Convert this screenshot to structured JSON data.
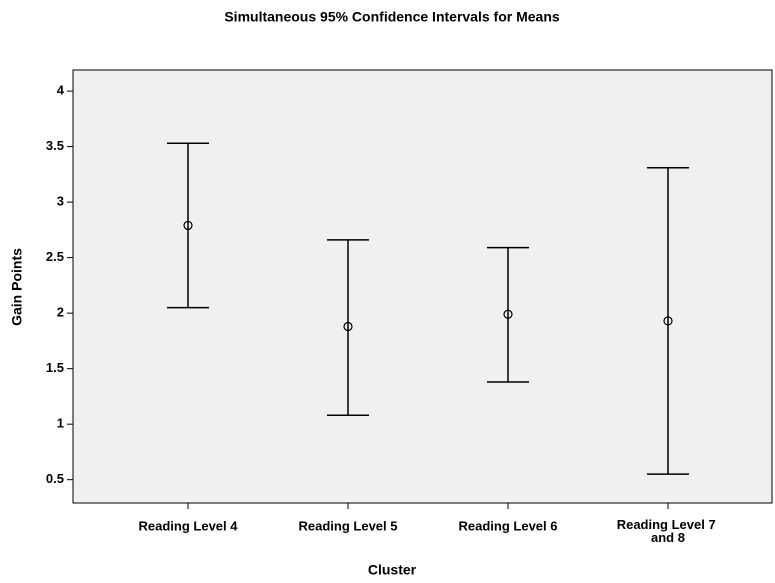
{
  "chart_data": {
    "type": "errorbar",
    "title": "Simultaneous 95% Confidence Intervals for Means",
    "x_label": "Cluster",
    "y_label": "Gain Points",
    "categories": [
      "Reading Level 4",
      "Reading Level 5",
      "Reading Level 6",
      "Reading Level 7 and 8"
    ],
    "means": [
      2.79,
      1.88,
      1.99,
      1.93
    ],
    "lower": [
      2.05,
      1.08,
      1.38,
      0.55
    ],
    "upper": [
      3.53,
      2.66,
      2.59,
      3.31
    ],
    "ylim": [
      0.29,
      4.19
    ],
    "yticks": [
      0.5,
      1,
      1.5,
      2,
      2.5,
      3,
      3.5,
      4
    ],
    "plot_background": "#f0f0f0",
    "color": "#000000"
  }
}
